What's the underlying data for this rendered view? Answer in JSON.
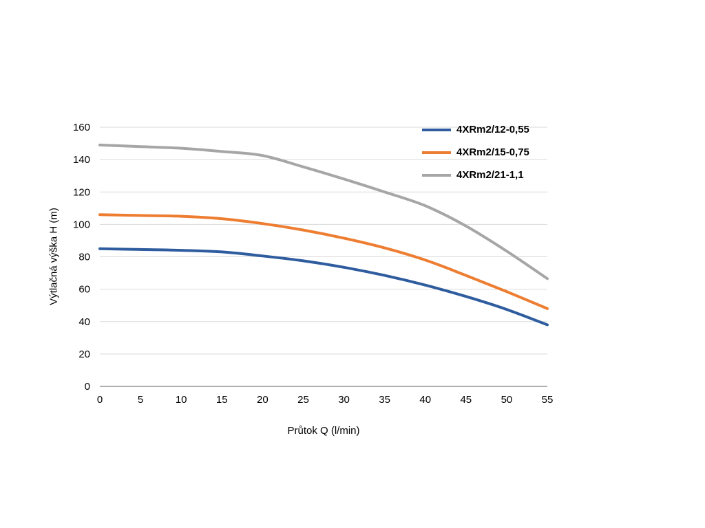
{
  "chart_data": {
    "type": "line",
    "title": "",
    "xlabel": "Průtok Q (l/min)",
    "ylabel": "Výtlačná výška H (m)",
    "xlim": [
      0,
      55
    ],
    "ylim": [
      0,
      160
    ],
    "x_ticks": [
      0,
      5,
      10,
      15,
      20,
      25,
      30,
      35,
      40,
      45,
      50,
      55
    ],
    "y_ticks": [
      0,
      20,
      40,
      60,
      80,
      100,
      120,
      140,
      160
    ],
    "grid": "horizontal",
    "legend_position": "top-right",
    "x": [
      0,
      5,
      10,
      15,
      20,
      25,
      30,
      35,
      40,
      45,
      50,
      55
    ],
    "series": [
      {
        "name": "4XRm2/12-0,55",
        "color": "#2E5C9E",
        "values": [
          85,
          84.5,
          84,
          83,
          80.5,
          77.5,
          73.5,
          68.5,
          62.5,
          55.5,
          47.5,
          38
        ]
      },
      {
        "name": "4XRm2/15-0,75",
        "color": "#ED7D31",
        "values": [
          106,
          105.5,
          105,
          103.5,
          100.5,
          96.5,
          91.5,
          85.5,
          78,
          68.5,
          58.5,
          48
        ]
      },
      {
        "name": "4XRm2/21-1,1",
        "color": "#A6A6A6",
        "values": [
          149,
          148,
          147,
          145,
          142.5,
          135.5,
          128,
          120,
          111.5,
          99,
          83.5,
          66.5
        ]
      }
    ],
    "style": {
      "grid_color": "#D9D9D9",
      "axis_color": "#808080",
      "line_width": 4
    }
  }
}
